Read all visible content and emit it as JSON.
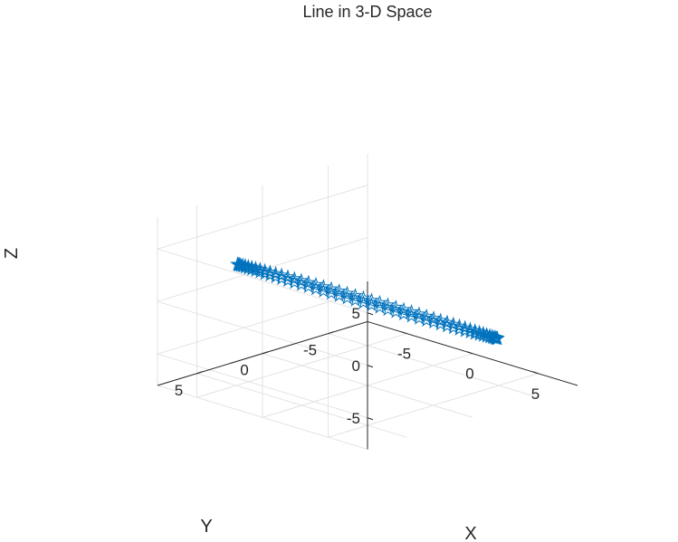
{
  "chart_data": {
    "type": "line",
    "title": "Line in 3-D Space",
    "xlabel": "X",
    "ylabel": "Y",
    "zlabel": "Z",
    "xlim": [
      -8,
      8
    ],
    "ylim": [
      -8,
      8
    ],
    "zlim": [
      -8,
      8
    ],
    "xticks": [
      "-5",
      "0",
      "5"
    ],
    "yticks": [
      "-5",
      "0",
      "5"
    ],
    "zticks": [
      "-5",
      "0",
      "5"
    ],
    "grid": true,
    "series": [
      {
        "marker": "pentagram",
        "color": "#0072bd",
        "x": "t",
        "y": "7*cos(t)",
        "z": "5*cos(t)",
        "x_param": "7*sin(t)",
        "t_range": [
          0,
          6.2832
        ],
        "points": 100
      }
    ]
  }
}
